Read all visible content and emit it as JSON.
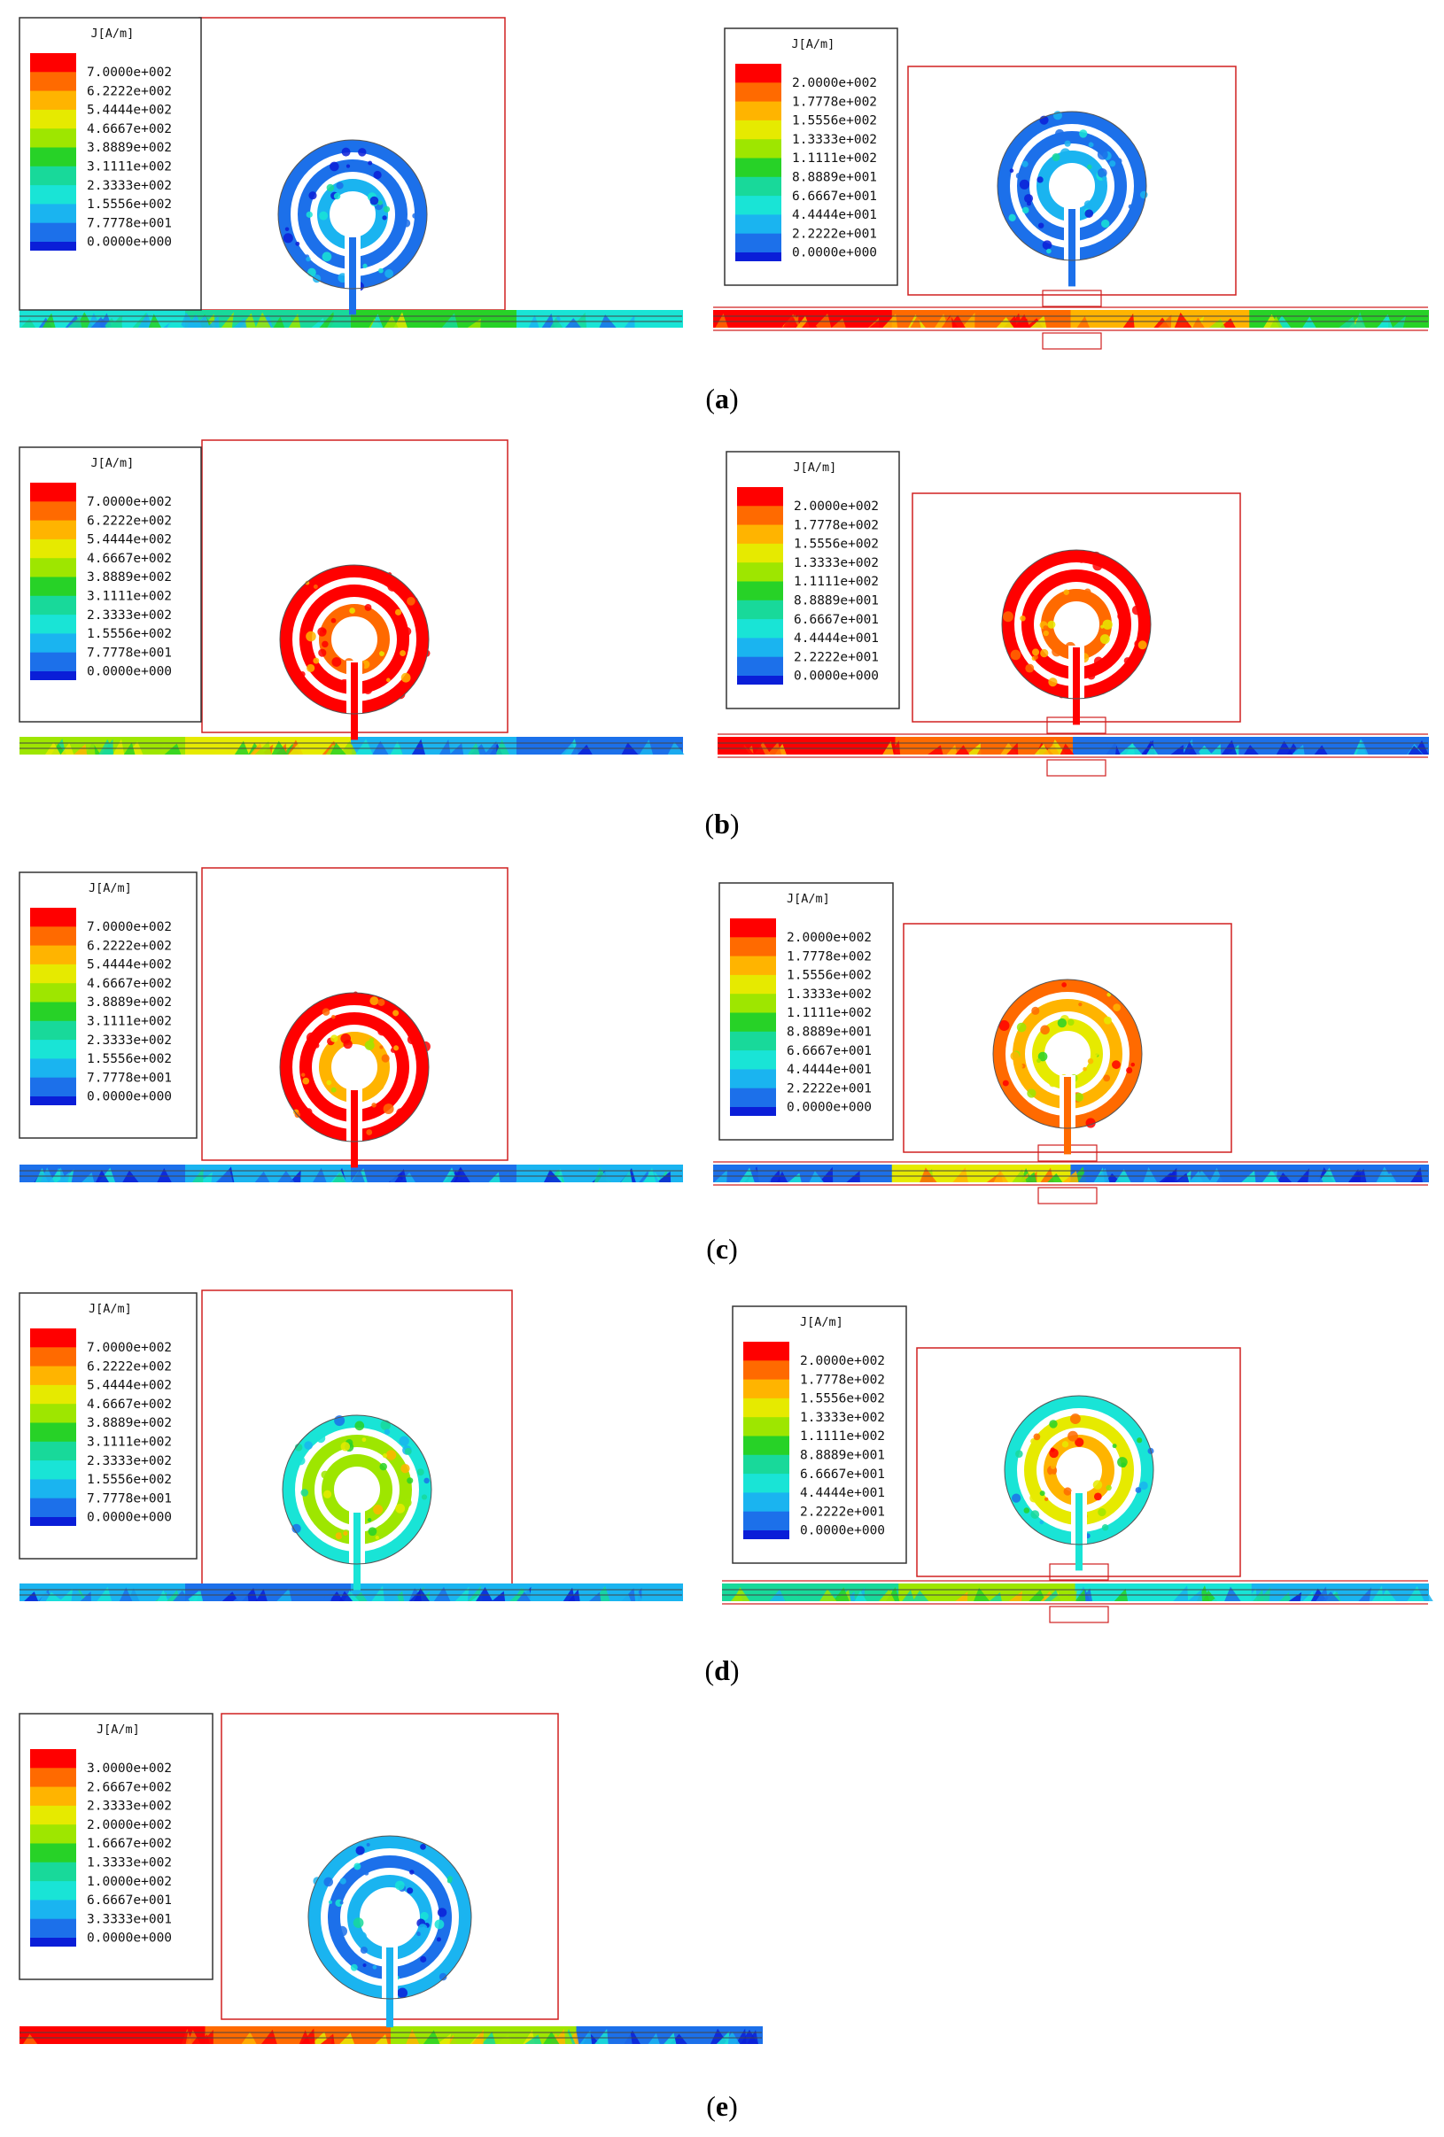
{
  "figure": {
    "legend_title": "J[A/m]",
    "palette": [
      "#ff0000",
      "#ff6a00",
      "#ffb400",
      "#e6ea00",
      "#9ee600",
      "#27d227",
      "#18d99a",
      "#19e4d6",
      "#1ab4f0",
      "#1c70ea",
      "#0a1ed8"
    ],
    "panels": [
      {
        "caption": "a",
        "left": {
          "ticks": [
            "7.0000e+002",
            "6.2222e+002",
            "5.4444e+002",
            "4.6667e+002",
            "3.8889e+002",
            "3.1111e+002",
            "2.3333e+002",
            "1.5556e+002",
            "7.7778e+001",
            "0.0000e+000"
          ]
        },
        "right": {
          "ticks": [
            "2.0000e+002",
            "1.7778e+002",
            "1.5556e+002",
            "1.3333e+002",
            "1.1111e+002",
            "8.8889e+001",
            "6.6667e+001",
            "4.4444e+001",
            "2.2222e+001",
            "0.0000e+000"
          ]
        }
      },
      {
        "caption": "b",
        "left": {
          "ticks": [
            "7.0000e+002",
            "6.2222e+002",
            "5.4444e+002",
            "4.6667e+002",
            "3.8889e+002",
            "3.1111e+002",
            "2.3333e+002",
            "1.5556e+002",
            "7.7778e+001",
            "0.0000e+000"
          ]
        },
        "right": {
          "ticks": [
            "2.0000e+002",
            "1.7778e+002",
            "1.5556e+002",
            "1.3333e+002",
            "1.1111e+002",
            "8.8889e+001",
            "6.6667e+001",
            "4.4444e+001",
            "2.2222e+001",
            "0.0000e+000"
          ]
        }
      },
      {
        "caption": "c",
        "left": {
          "ticks": [
            "7.0000e+002",
            "6.2222e+002",
            "5.4444e+002",
            "4.6667e+002",
            "3.8889e+002",
            "3.1111e+002",
            "2.3333e+002",
            "1.5556e+002",
            "7.7778e+001",
            "0.0000e+000"
          ]
        },
        "right": {
          "ticks": [
            "2.0000e+002",
            "1.7778e+002",
            "1.5556e+002",
            "1.3333e+002",
            "1.1111e+002",
            "8.8889e+001",
            "6.6667e+001",
            "4.4444e+001",
            "2.2222e+001",
            "0.0000e+000"
          ]
        }
      },
      {
        "caption": "d",
        "left": {
          "ticks": [
            "7.0000e+002",
            "6.2222e+002",
            "5.4444e+002",
            "4.6667e+002",
            "3.8889e+002",
            "3.1111e+002",
            "2.3333e+002",
            "1.5556e+002",
            "7.7778e+001",
            "0.0000e+000"
          ]
        },
        "right": {
          "ticks": [
            "2.0000e+002",
            "1.7778e+002",
            "1.5556e+002",
            "1.3333e+002",
            "1.1111e+002",
            "8.8889e+001",
            "6.6667e+001",
            "4.4444e+001",
            "2.2222e+001",
            "0.0000e+000"
          ]
        }
      },
      {
        "caption": "e",
        "left": {
          "ticks": [
            "3.0000e+002",
            "2.6667e+002",
            "2.3333e+002",
            "2.0000e+002",
            "1.6667e+002",
            "1.3333e+002",
            "1.0000e+002",
            "6.6667e+001",
            "3.3333e+001",
            "0.0000e+000"
          ]
        }
      }
    ]
  }
}
